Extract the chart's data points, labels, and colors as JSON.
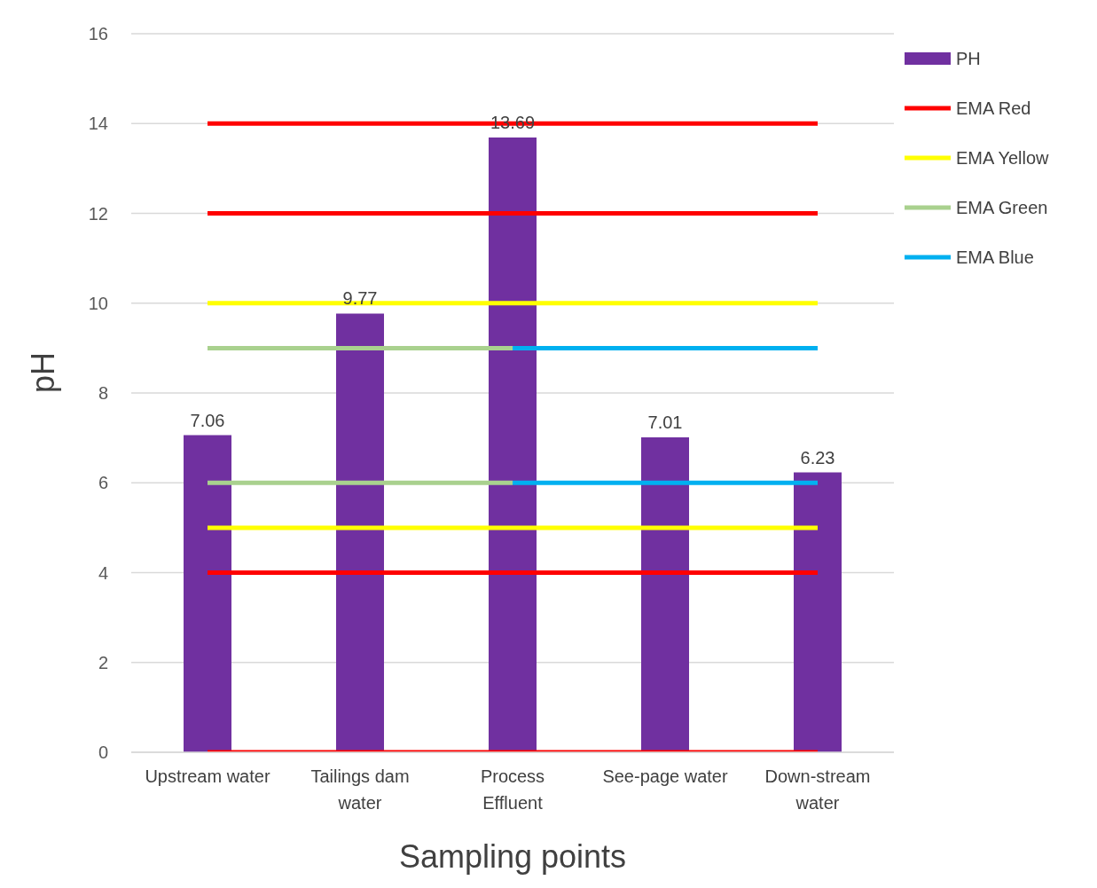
{
  "chart_data": {
    "type": "bar",
    "xlabel": "Sampling points",
    "ylabel": "pH",
    "categories": [
      "Upstream water",
      "Tailings dam water",
      "Process Effluent",
      "See-page water",
      "Down-stream water"
    ],
    "series": [
      {
        "name": "PH",
        "color": "#7030a0",
        "values": [
          7.06,
          9.77,
          13.69,
          7.01,
          6.23
        ],
        "value_labels": [
          "7.06",
          "9.77",
          "13.69",
          "7.01",
          "6.23"
        ]
      },
      {
        "name": "EMA Red",
        "type": "line",
        "color": "#ff0000",
        "values": [
          14,
          14,
          14,
          14,
          14
        ]
      },
      {
        "type": "line",
        "color": "#ff0000",
        "values": [
          12,
          12,
          12,
          12,
          12
        ]
      },
      {
        "type": "line",
        "color": "#ff0000",
        "values": [
          4,
          4,
          4,
          4,
          4
        ]
      },
      {
        "type": "line",
        "color": "#ff0000",
        "values": [
          0,
          0,
          0,
          0,
          0
        ]
      },
      {
        "name": "EMA Yellow",
        "type": "line",
        "color": "#ffff00",
        "values": [
          10,
          10,
          10,
          10,
          10
        ]
      },
      {
        "type": "line",
        "color": "#ffff00",
        "values": [
          5,
          5,
          5,
          5,
          5
        ]
      },
      {
        "name": "EMA Green",
        "type": "line",
        "color": "#a9d18e",
        "values": [
          9,
          9,
          9,
          null,
          null
        ]
      },
      {
        "type": "line",
        "color": "#a9d18e",
        "values": [
          6,
          6,
          6,
          null,
          null
        ]
      },
      {
        "name": "EMA Blue",
        "type": "line",
        "color": "#00b0f0",
        "values": [
          null,
          null,
          9,
          9,
          9
        ]
      },
      {
        "type": "line",
        "color": "#00b0f0",
        "values": [
          null,
          null,
          6,
          6,
          6
        ]
      }
    ],
    "ylim": [
      0,
      16
    ],
    "yticks": [
      0,
      2,
      4,
      6,
      8,
      10,
      12,
      14,
      16
    ],
    "grid": "y",
    "legend": "top right",
    "marker": "none",
    "line_style": "solid"
  }
}
